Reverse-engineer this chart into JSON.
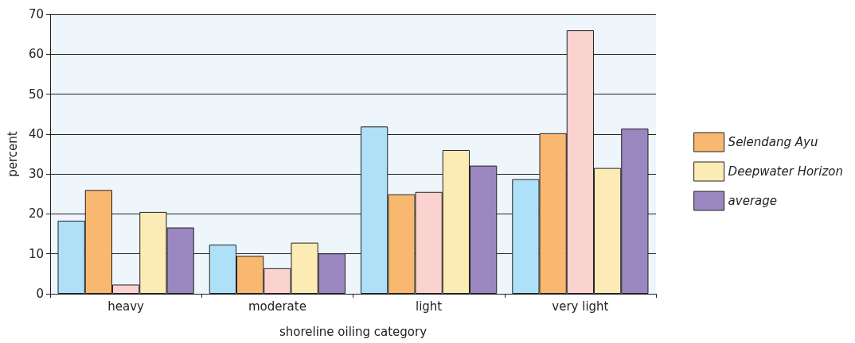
{
  "chart_data": {
    "type": "bar",
    "xlabel": "shoreline oiling category",
    "ylabel": "percent",
    "categories": [
      "heavy",
      "moderate",
      "light",
      "very light"
    ],
    "series": [
      {
        "color": "#aee0f8",
        "values": [
          18.3,
          12.3,
          41.9,
          28.7
        ]
      },
      {
        "name": "Selendang Ayu",
        "color": "#f9b870",
        "values": [
          26,
          9.5,
          24.9,
          40.2
        ]
      },
      {
        "color": "#fad2d0",
        "values": [
          2.3,
          6.4,
          25.5,
          66
        ]
      },
      {
        "name": "Deepwater Horizon",
        "color": "#fdebb5",
        "values": [
          20.5,
          12.8,
          36,
          31.5
        ]
      },
      {
        "name": "average",
        "color": "#9b87c0",
        "values": [
          16.6,
          10.1,
          32.1,
          41.4
        ]
      }
    ],
    "ylim": [
      0,
      70
    ],
    "yticks": [
      0,
      10,
      20,
      30,
      40,
      50,
      60,
      70
    ],
    "grid": "y",
    "legend": "right"
  }
}
